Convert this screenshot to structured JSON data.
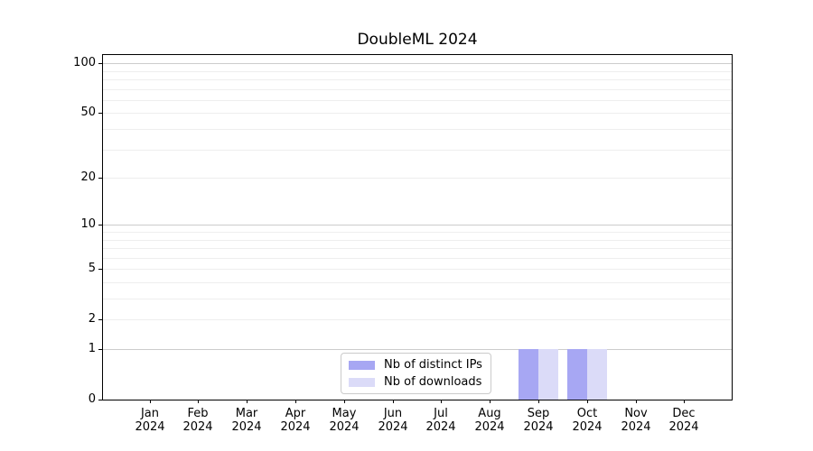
{
  "chart_data": {
    "type": "bar",
    "title": "DoubleML 2024",
    "xlabel": "",
    "ylabel": "",
    "x_categories": [
      {
        "month": "Jan",
        "year": "2024"
      },
      {
        "month": "Feb",
        "year": "2024"
      },
      {
        "month": "Mar",
        "year": "2024"
      },
      {
        "month": "Apr",
        "year": "2024"
      },
      {
        "month": "May",
        "year": "2024"
      },
      {
        "month": "Jun",
        "year": "2024"
      },
      {
        "month": "Jul",
        "year": "2024"
      },
      {
        "month": "Aug",
        "year": "2024"
      },
      {
        "month": "Sep",
        "year": "2024"
      },
      {
        "month": "Oct",
        "year": "2024"
      },
      {
        "month": "Nov",
        "year": "2024"
      },
      {
        "month": "Dec",
        "year": "2024"
      }
    ],
    "series": [
      {
        "name": "Nb of distinct IPs",
        "color": "#a7a7f3",
        "values": [
          0,
          0,
          0,
          0,
          0,
          0,
          0,
          0,
          1,
          1,
          0,
          0
        ]
      },
      {
        "name": "Nb of downloads",
        "color": "#dbdbf8",
        "values": [
          0,
          0,
          0,
          0,
          0,
          0,
          0,
          0,
          1,
          1,
          0,
          0
        ]
      }
    ],
    "y_axis": {
      "scale": "symlog",
      "ylim": [
        0,
        115
      ],
      "ticks": [
        100,
        50,
        20,
        10,
        5,
        2,
        1,
        0
      ],
      "major_gridlines": [
        1,
        10,
        100
      ],
      "minor_gridlines": [
        2,
        3,
        4,
        5,
        6,
        7,
        8,
        9,
        20,
        30,
        40,
        50,
        60,
        70,
        80,
        90
      ]
    },
    "legend": {
      "position": "lower center",
      "entries": [
        "Nb of distinct IPs",
        "Nb of downloads"
      ]
    },
    "colors": {
      "grid_major": "#cccccc",
      "grid_minor": "#eeeeee",
      "spine": "#000000",
      "text": "#000000",
      "background": "#ffffff"
    }
  }
}
